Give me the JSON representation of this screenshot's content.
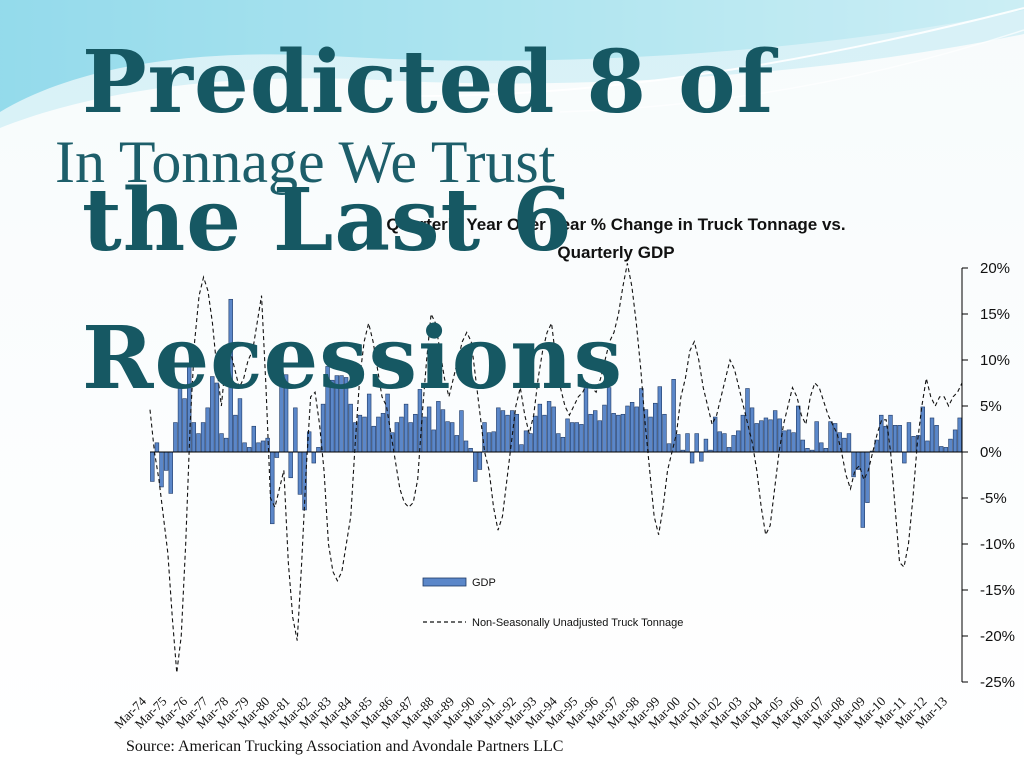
{
  "slide": {
    "overlay_title": "Predicted 8 of the Last 6 Recessions",
    "title": "In Tonnage We Trust",
    "source": "Source: American Trucking Association and Avondale Partners LLC"
  },
  "colors": {
    "bar_fill": "#5b87c9",
    "bar_stroke": "#1f3a66",
    "line": "#111111",
    "title": "#165863",
    "accent_teal": "#1d5e6a"
  },
  "chart_data": {
    "type": "bar",
    "title": "Quarterly Year Over Year % Change in Truck Tonnage vs. Quarterly GDP",
    "title_lines": [
      "Quarterly Year Over Year % Change in Truck Tonnage vs.",
      "Quarterly GDP"
    ],
    "ylim": [
      -25,
      20
    ],
    "yticks": [
      20,
      15,
      10,
      5,
      0,
      -5,
      -10,
      -15,
      -20,
      -25
    ],
    "ytick_labels": [
      "20%",
      "15%",
      "10%",
      "5%",
      "0%",
      "-5%",
      "-10%",
      "-15%",
      "-20%",
      "-25%"
    ],
    "y_axis_position": "right",
    "x_tick_labels": [
      "Mar-74",
      "Mar-75",
      "Mar-76",
      "Mar-77",
      "Mar-78",
      "Mar-79",
      "Mar-80",
      "Mar-81",
      "Mar-82",
      "Mar-83",
      "Mar-84",
      "Mar-85",
      "Mar-86",
      "Mar-87",
      "Mar-88",
      "Mar-89",
      "Mar-90",
      "Mar-91",
      "Mar-92",
      "Mar-93",
      "Mar-94",
      "Mar-95",
      "Mar-96",
      "Mar-97",
      "Mar-98",
      "Mar-99",
      "Mar-00",
      "Mar-01",
      "Mar-02",
      "Mar-03",
      "Mar-04",
      "Mar-05",
      "Mar-06",
      "Mar-07",
      "Mar-08",
      "Mar-09",
      "Mar-10",
      "Mar-11",
      "Mar-12",
      "Mar-13"
    ],
    "legend_position": "inside-lower-center",
    "series": [
      {
        "name": "GDP",
        "kind": "bar",
        "values": [
          -3.2,
          1.0,
          -3.8,
          -2.0,
          -4.5,
          3.2,
          7.0,
          5.8,
          9.4,
          3.2,
          2.0,
          3.2,
          4.8,
          8.2,
          7.5,
          2.0,
          1.5,
          16.6,
          4.0,
          5.8,
          1.0,
          0.5,
          2.8,
          1.0,
          1.2,
          1.5,
          -7.8,
          -0.6,
          7.8,
          8.4,
          -2.8,
          4.8,
          -4.6,
          -6.3,
          2.2,
          -1.2,
          0.5,
          5.2,
          9.3,
          7.8,
          8.3,
          8.3,
          8.1,
          5.2,
          3.2,
          4.0,
          3.8,
          6.3,
          2.8,
          3.8,
          4.2,
          6.3,
          2.1,
          3.2,
          3.8,
          5.2,
          3.2,
          4.1,
          6.8,
          3.8,
          4.9,
          2.4,
          5.5,
          4.6,
          3.3,
          3.2,
          1.8,
          4.5,
          1.2,
          0.4,
          -3.2,
          -1.9,
          3.2,
          2.1,
          2.2,
          4.8,
          4.5,
          4.0,
          4.5,
          4.1,
          0.8,
          2.3,
          2.0,
          3.9,
          5.2,
          4.0,
          5.5,
          4.9,
          2.0,
          1.6,
          3.6,
          3.2,
          3.2,
          3.0,
          7.5,
          4.1,
          4.5,
          3.4,
          5.1,
          7.0,
          4.2,
          4.0,
          4.1,
          5.0,
          5.4,
          4.9,
          6.9,
          4.6,
          3.8,
          5.3,
          7.1,
          4.1,
          0.9,
          7.9,
          1.9,
          0.2,
          2.0,
          -1.2,
          2.0,
          -1.0,
          1.4,
          0.2,
          3.8,
          2.2,
          2.0,
          0.5,
          1.8,
          2.3,
          4.0,
          6.9,
          4.8,
          3.1,
          3.4,
          3.7,
          3.5,
          4.5,
          3.6,
          2.3,
          2.4,
          2.1,
          5.0,
          1.3,
          0.4,
          0.2,
          3.3,
          1.0,
          0.4,
          3.3,
          3.1,
          2.1,
          1.5,
          2.0,
          -2.7,
          -1.9,
          -8.2,
          -5.5,
          0.1,
          1.3,
          4.0,
          2.8,
          4.0,
          2.9,
          2.9,
          -1.2,
          3.2,
          1.7,
          1.8,
          4.9,
          1.2,
          3.7,
          2.9,
          0.6,
          0.5,
          1.4,
          2.4,
          3.7
        ]
      },
      {
        "name": "Non-Seasonally Unadjusted Truck Tonnage",
        "kind": "line",
        "style": "dashed",
        "values": [
          4.6,
          0.0,
          -3.0,
          -7.0,
          -11.0,
          -18.0,
          -24.0,
          -20.0,
          -10.0,
          3.0,
          12.0,
          17.0,
          19.0,
          17.5,
          14.0,
          9.0,
          5.0,
          10.0,
          11.0,
          9.0,
          7.0,
          8.0,
          10.0,
          11.0,
          14.0,
          17.0,
          7.0,
          -5.0,
          -6.0,
          -4.0,
          -2.0,
          -12.0,
          -18.0,
          -20.5,
          -12.0,
          -2.0,
          6.0,
          6.5,
          3.0,
          -2.0,
          -10.0,
          -13.0,
          -14.0,
          -13.0,
          -10.0,
          -7.0,
          1.0,
          8.0,
          12.0,
          14.0,
          12.0,
          9.0,
          6.0,
          5.0,
          2.0,
          -1.0,
          -4.0,
          -5.5,
          -6.0,
          -5.5,
          -3.0,
          4.0,
          10.0,
          15.0,
          14.0,
          11.0,
          8.0,
          6.0,
          8.0,
          10.0,
          12.0,
          13.0,
          12.0,
          8.0,
          4.0,
          0.0,
          -2.0,
          -6.0,
          -8.5,
          -7.0,
          -3.0,
          1.0,
          5.0,
          7.0,
          4.0,
          2.0,
          4.0,
          8.0,
          11.0,
          13.0,
          14.0,
          10.0,
          7.0,
          5.0,
          4.0,
          5.0,
          6.0,
          6.5,
          7.5,
          7.0,
          6.5,
          8.0,
          10.0,
          12.0,
          13.0,
          15.0,
          18.0,
          20.5,
          18.0,
          14.0,
          9.0,
          3.0,
          -2.0,
          -7.0,
          -9.0,
          -6.0,
          -2.0,
          0.0,
          2.0,
          6.0,
          8.0,
          11.0,
          12.0,
          10.0,
          7.0,
          5.0,
          3.0,
          4.0,
          6.0,
          8.0,
          10.0,
          9.0,
          7.0,
          5.0,
          3.0,
          1.0,
          -2.0,
          -6.0,
          -9.0,
          -8.0,
          -4.0,
          0.0,
          3.0,
          5.0,
          7.0,
          6.0,
          4.0,
          3.0,
          6.0,
          7.5,
          7.0,
          5.5,
          4.0,
          3.0,
          2.0,
          0.0,
          -2.5,
          -4.0,
          -2.0,
          -1.5,
          -3.0,
          -2.0,
          0.0,
          2.0,
          3.5,
          3.5,
          0.0,
          -6.0,
          -12.0,
          -12.5,
          -10.0,
          -5.0,
          1.0,
          5.0,
          8.0,
          6.0,
          5.0,
          6.0,
          6.0,
          5.0,
          6.0,
          6.5,
          7.5
        ]
      }
    ]
  }
}
